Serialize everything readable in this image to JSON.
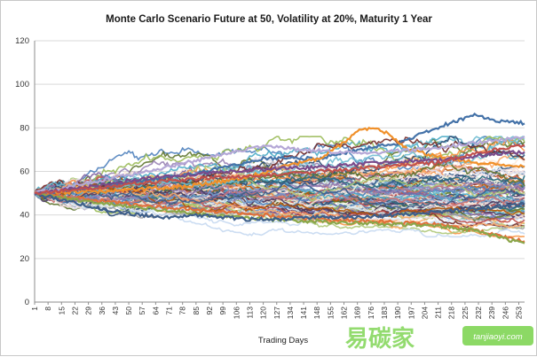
{
  "chart_data": {
    "type": "line",
    "title": "Monte Carlo  Scenario Future at 50, Volatility at 20%, Maturity 1 Year",
    "xlabel": "Trading Days",
    "ylabel": "",
    "ylim": [
      0,
      120
    ],
    "yticks": [
      0,
      20,
      40,
      60,
      80,
      100,
      120
    ],
    "xlim": [
      1,
      256
    ],
    "xticks": [
      1,
      8,
      15,
      22,
      29,
      36,
      43,
      50,
      57,
      64,
      71,
      78,
      85,
      92,
      99,
      106,
      113,
      120,
      127,
      134,
      141,
      148,
      155,
      162,
      169,
      176,
      183,
      190,
      197,
      204,
      211,
      218,
      225,
      232,
      239,
      246,
      253
    ],
    "start_value": 50,
    "volatility": 0.2,
    "num_paths": 100,
    "trading_days": 256,
    "highlighted_series": [
      {
        "name": "path-high-blue",
        "color": "#4472a8",
        "points": [
          [
            1,
            50
          ],
          [
            30,
            52
          ],
          [
            60,
            56
          ],
          [
            90,
            60
          ],
          [
            120,
            66
          ],
          [
            150,
            66
          ],
          [
            170,
            70
          ],
          [
            190,
            73
          ],
          [
            210,
            80
          ],
          [
            230,
            86
          ],
          [
            240,
            83
          ],
          [
            250,
            83
          ],
          [
            256,
            82
          ]
        ]
      },
      {
        "name": "path-orange",
        "color": "#f0902a",
        "points": [
          [
            1,
            50
          ],
          [
            40,
            51
          ],
          [
            80,
            53
          ],
          [
            110,
            57
          ],
          [
            130,
            62
          ],
          [
            150,
            66
          ],
          [
            160,
            72
          ],
          [
            170,
            79
          ],
          [
            178,
            80
          ],
          [
            186,
            77
          ],
          [
            195,
            70
          ],
          [
            210,
            67
          ],
          [
            230,
            64
          ],
          [
            256,
            62
          ]
        ]
      },
      {
        "name": "path-low-orange",
        "color": "#e0703a",
        "points": [
          [
            1,
            50
          ],
          [
            30,
            47
          ],
          [
            60,
            44
          ],
          [
            90,
            42
          ],
          [
            120,
            40
          ],
          [
            150,
            38
          ],
          [
            180,
            37
          ],
          [
            210,
            36
          ],
          [
            230,
            33
          ],
          [
            245,
            30
          ],
          [
            256,
            28
          ]
        ]
      },
      {
        "name": "path-low-green",
        "color": "#8aa64a",
        "points": [
          [
            1,
            50
          ],
          [
            30,
            46
          ],
          [
            60,
            43
          ],
          [
            90,
            40
          ],
          [
            120,
            38
          ],
          [
            150,
            37
          ],
          [
            180,
            36
          ],
          [
            210,
            35
          ],
          [
            230,
            33
          ],
          [
            245,
            29
          ],
          [
            256,
            27
          ]
        ]
      },
      {
        "name": "path-low-navy",
        "color": "#3e5f8a",
        "points": [
          [
            1,
            50
          ],
          [
            20,
            46
          ],
          [
            40,
            42
          ],
          [
            55,
            40
          ],
          [
            70,
            39
          ],
          [
            90,
            40
          ],
          [
            110,
            38
          ],
          [
            130,
            38
          ],
          [
            150,
            39
          ],
          [
            170,
            39
          ],
          [
            190,
            40
          ],
          [
            220,
            42
          ],
          [
            256,
            45
          ]
        ]
      },
      {
        "name": "path-lavender",
        "color": "#b4a7d6",
        "points": [
          [
            1,
            50
          ],
          [
            30,
            55
          ],
          [
            60,
            60
          ],
          [
            90,
            66
          ],
          [
            120,
            72
          ],
          [
            140,
            70
          ],
          [
            170,
            68
          ],
          [
            200,
            70
          ],
          [
            230,
            73
          ],
          [
            256,
            76
          ]
        ]
      },
      {
        "name": "path-purple",
        "color": "#7a4a8a",
        "points": [
          [
            1,
            50
          ],
          [
            30,
            53
          ],
          [
            60,
            57
          ],
          [
            90,
            59
          ],
          [
            120,
            61
          ],
          [
            150,
            62
          ],
          [
            180,
            64
          ],
          [
            210,
            65
          ],
          [
            240,
            68
          ],
          [
            256,
            69
          ]
        ]
      },
      {
        "name": "path-red",
        "color": "#c0504d",
        "points": [
          [
            1,
            50
          ],
          [
            30,
            52
          ],
          [
            60,
            55
          ],
          [
            90,
            57
          ],
          [
            120,
            58
          ],
          [
            150,
            60
          ],
          [
            180,
            62
          ],
          [
            210,
            64
          ],
          [
            240,
            70
          ],
          [
            256,
            72
          ]
        ]
      }
    ]
  },
  "watermark": {
    "text": "易碳家",
    "url": "tanjiaoyi.com"
  }
}
